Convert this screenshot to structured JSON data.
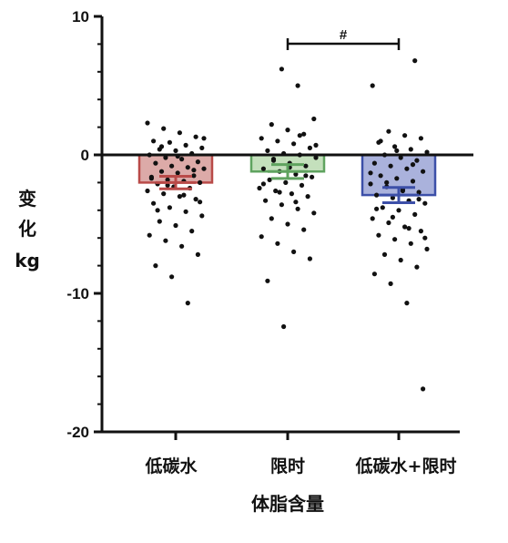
{
  "chart_data": {
    "type": "bar",
    "ylabel": [
      "变",
      "化",
      "kg"
    ],
    "xlabel": "体脂含量",
    "ylim": [
      -20,
      10
    ],
    "yticks": [
      10,
      0,
      -10,
      -20
    ],
    "categories": [
      "低碳水",
      "限时",
      "低碳水+限时"
    ],
    "values": [
      -2.0,
      -1.2,
      -2.9
    ],
    "sem": [
      0.45,
      0.5,
      0.55
    ],
    "bar_colors": [
      "#b94a48",
      "#5fa35f",
      "#3c4fa8"
    ],
    "bar_fills": [
      "#dcaaa8",
      "#c4e0bc",
      "#aab2dc"
    ],
    "significance": {
      "from": 1,
      "to": 2,
      "label": "#"
    },
    "points": [
      [
        2.3,
        1.9,
        1.6,
        1.3,
        1.0,
        0.9,
        0.7,
        0.5,
        0.4,
        0.3,
        0.1,
        0.0,
        -0.2,
        -0.3,
        -0.5,
        -0.6,
        -0.8,
        -0.9,
        -1.0,
        -1.2,
        -1.3,
        -1.5,
        -1.6,
        -1.8,
        -1.9,
        -2.0,
        -2.1,
        -2.3,
        -2.4,
        -2.6,
        -2.8,
        -3.0,
        -3.2,
        -3.5,
        -3.8,
        -4.1,
        -4.4,
        -4.8,
        -5.1,
        -5.5,
        -5.8,
        -6.2,
        -6.6,
        -7.2,
        -8.0,
        -8.8,
        -10.7,
        1.2,
        0.6,
        -0.1,
        -1.1,
        -1.7,
        -2.2,
        -2.9,
        -3.4,
        -4.0
      ],
      [
        6.2,
        5.0,
        2.6,
        2.2,
        1.8,
        1.5,
        1.2,
        1.0,
        0.8,
        0.5,
        0.3,
        0.1,
        0.0,
        -0.2,
        -0.4,
        -0.6,
        -0.8,
        -1.0,
        -1.2,
        -1.4,
        -1.6,
        -1.8,
        -2.0,
        -2.2,
        -2.4,
        -2.6,
        -2.8,
        -3.0,
        -3.3,
        -3.6,
        -3.9,
        -4.2,
        -4.6,
        -5.0,
        -5.4,
        -5.9,
        -6.4,
        -7.0,
        -7.5,
        -9.1,
        -12.4,
        1.4,
        0.7,
        -0.3,
        -0.9,
        -1.5,
        -2.1,
        -2.7,
        -3.4
      ],
      [
        6.8,
        5.0,
        1.7,
        1.4,
        1.2,
        0.9,
        0.6,
        0.4,
        0.2,
        0.0,
        -0.2,
        -0.4,
        -0.6,
        -0.8,
        -1.0,
        -1.2,
        -1.5,
        -1.7,
        -1.9,
        -2.1,
        -2.3,
        -2.5,
        -2.7,
        -2.9,
        -3.1,
        -3.3,
        -3.5,
        -3.8,
        -4.0,
        -4.3,
        -4.6,
        -4.9,
        -5.2,
        -5.5,
        -5.8,
        -6.1,
        -6.4,
        -6.8,
        -7.2,
        -7.6,
        -8.1,
        -8.6,
        -9.3,
        -10.7,
        -16.9,
        1.0,
        0.3,
        -0.7,
        -1.3,
        -2.0,
        -2.6,
        -3.2,
        -3.9,
        -4.5,
        -5.3,
        -6.0
      ]
    ]
  }
}
